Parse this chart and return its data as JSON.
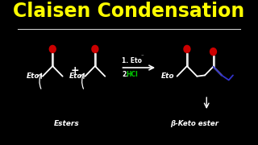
{
  "background_color": "#000000",
  "title": "Claisen Condensation",
  "title_color": "#FFFF00",
  "title_fontsize": 17,
  "ester1_label": "Eto",
  "ester2_label": "Eto",
  "product_eto_label": "Eto",
  "esters_label": "Esters",
  "product_name": "β-Keto ester",
  "reagent1_text": "1. Eto",
  "reagent1_sup": "⁻",
  "reagent2_num": "2.",
  "reagent2_hcl": "HCl",
  "reagent2_color": "#00CC00",
  "arrow_color": "#FFFFFF",
  "oxygen_color": "#CC0000",
  "blue_color": "#3333CC",
  "white_color": "#FFFFFF",
  "underline_color": "#CCCCCC"
}
